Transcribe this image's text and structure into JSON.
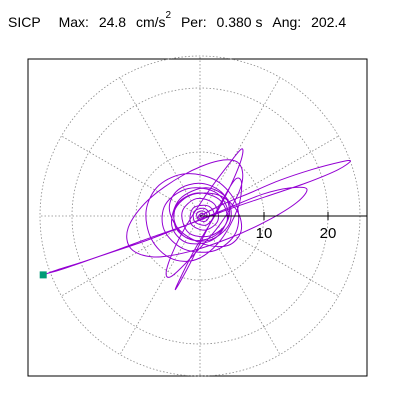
{
  "header": {
    "name": "SICP",
    "max_label": "Max:",
    "max_value": "24.8",
    "max_unit": "cm/s",
    "max_exp": "2",
    "per_label": "Per:",
    "per_value": "0.380 s",
    "ang_label": "Ang:",
    "ang_value": "202.4"
  },
  "chart_data": {
    "type": "line",
    "coordinate_system": "polar",
    "radial_ticks": [
      10,
      20
    ],
    "radial_max": 25,
    "reference_angle_deg": 0,
    "grid": true,
    "colors": {
      "trace": "#9400d3",
      "marker": "#009b77",
      "grid": "#888888",
      "axis": "#000000"
    },
    "end_marker": {
      "x": -24.5,
      "y": -9.2
    },
    "trace": [
      [
        0,
        0
      ],
      [
        3.5,
        1.8
      ],
      [
        7.8,
        3.6
      ],
      [
        12.5,
        5.6
      ],
      [
        17.6,
        7.3
      ],
      [
        21.8,
        8.4
      ],
      [
        23.5,
        8.6
      ],
      [
        21.5,
        7.2
      ],
      [
        16.4,
        5.1
      ],
      [
        10.2,
        3.0
      ],
      [
        4.6,
        1.1
      ],
      [
        -1.5,
        -1.2
      ],
      [
        -7.8,
        -3.4
      ],
      [
        -13.2,
        -5.4
      ],
      [
        -18.4,
        -7.2
      ],
      [
        -22.3,
        -8.4
      ],
      [
        -23.6,
        -8.9
      ],
      [
        -21.2,
        -8.2
      ],
      [
        -15.4,
        -6.2
      ],
      [
        -8.6,
        -3.9
      ],
      [
        -2.1,
        -1.4
      ],
      [
        4.3,
        1.2
      ],
      [
        9.8,
        3.4
      ],
      [
        14.2,
        4.4
      ],
      [
        16.7,
        4.2
      ],
      [
        15.1,
        2.1
      ],
      [
        10.4,
        -0.8
      ],
      [
        4.5,
        -3.5
      ],
      [
        -1.8,
        -5.6
      ],
      [
        -7.2,
        -6.4
      ],
      [
        -10.8,
        -5.1
      ],
      [
        -11.2,
        -1.8
      ],
      [
        -8.1,
        2.5
      ],
      [
        -2.6,
        6.4
      ],
      [
        2.8,
        8.6
      ],
      [
        6.1,
        8.2
      ],
      [
        6.4,
        4.6
      ],
      [
        3.2,
        -1.2
      ],
      [
        -1.4,
        -6.5
      ],
      [
        -4.6,
        -9.5
      ],
      [
        -5.2,
        -8.3
      ],
      [
        -3.2,
        -3.4
      ],
      [
        0.6,
        2.8
      ],
      [
        4.5,
        8.1
      ],
      [
        6.6,
        10.5
      ],
      [
        6.1,
        7.8
      ],
      [
        3.2,
        1.6
      ],
      [
        -0.8,
        -5.2
      ],
      [
        -3.4,
        -10.4
      ],
      [
        -3.7,
        -11.3
      ],
      [
        -1.6,
        -7.5
      ],
      [
        1.4,
        -1.5
      ],
      [
        3.9,
        3.2
      ],
      [
        5.6,
        5.8
      ],
      [
        6.5,
        5.1
      ],
      [
        5.9,
        1.2
      ],
      [
        3.2,
        -3.8
      ],
      [
        -0.6,
        -6.8
      ],
      [
        -4.6,
        -6.6
      ],
      [
        -7.6,
        -3.6
      ],
      [
        -8.4,
        0.9
      ],
      [
        -6.4,
        4.8
      ],
      [
        -2.2,
        6.6
      ],
      [
        2.6,
        5.5
      ],
      [
        5.7,
        1.8
      ],
      [
        5.6,
        -2.6
      ],
      [
        2.3,
        -5.4
      ],
      [
        -2.4,
        -5.2
      ],
      [
        -5.6,
        -2.2
      ],
      [
        -5.4,
        1.8
      ],
      [
        -1.8,
        4.3
      ],
      [
        2.6,
        3.6
      ],
      [
        4.4,
        0.1
      ],
      [
        2.2,
        -3.6
      ],
      [
        -2.0,
        -4.2
      ],
      [
        -4.4,
        -1.5
      ],
      [
        -3.2,
        2.6
      ],
      [
        0.9,
        4.4
      ],
      [
        4.3,
        2.6
      ],
      [
        4.6,
        -1.2
      ],
      [
        1.4,
        -3.8
      ],
      [
        -2.6,
        -3.1
      ],
      [
        -4.1,
        0.4
      ],
      [
        -1.6,
        3.2
      ],
      [
        2.8,
        3.3
      ],
      [
        5.8,
        0.8
      ],
      [
        6.4,
        -2.4
      ],
      [
        4.4,
        -4.6
      ],
      [
        0.6,
        -4.4
      ],
      [
        -3.2,
        -2.2
      ],
      [
        -4.8,
        1.2
      ],
      [
        -3.4,
        4.1
      ],
      [
        0.2,
        5.1
      ],
      [
        3.6,
        3.5
      ],
      [
        4.6,
        0.2
      ],
      [
        2.6,
        -2.9
      ],
      [
        -1.0,
        -3.8
      ],
      [
        -3.8,
        -1.8
      ],
      [
        -3.6,
        1.8
      ],
      [
        -0.4,
        3.6
      ],
      [
        3.2,
        2.4
      ],
      [
        4.2,
        -0.9
      ],
      [
        1.6,
        -3.1
      ],
      [
        -1.8,
        -2.6
      ],
      [
        -2.8,
        0.6
      ],
      [
        -0.6,
        2.7
      ],
      [
        2.2,
        1.9
      ],
      [
        2.8,
        -0.7
      ],
      [
        0.8,
        -2.2
      ],
      [
        -1.4,
        -1.2
      ],
      [
        -1.1,
        1.2
      ],
      [
        1.2,
        1.6
      ],
      [
        2.2,
        0.2
      ],
      [
        1.0,
        -1.4
      ],
      [
        -0.8,
        -0.9
      ],
      [
        -0.9,
        0.7
      ],
      [
        0.6,
        1.2
      ],
      [
        1.5,
        0.3
      ],
      [
        0.9,
        -0.8
      ],
      [
        -0.2,
        -0.6
      ],
      [
        -0.5,
        0.4
      ],
      [
        0.4,
        0.8
      ],
      [
        1.1,
        0.2
      ],
      [
        0.5,
        -0.5
      ],
      [
        -0.3,
        -0.2
      ],
      [
        0.2,
        0.4
      ],
      [
        0.8,
        0.1
      ],
      [
        0.3,
        -0.3
      ],
      [
        0,
        0
      ]
    ]
  }
}
